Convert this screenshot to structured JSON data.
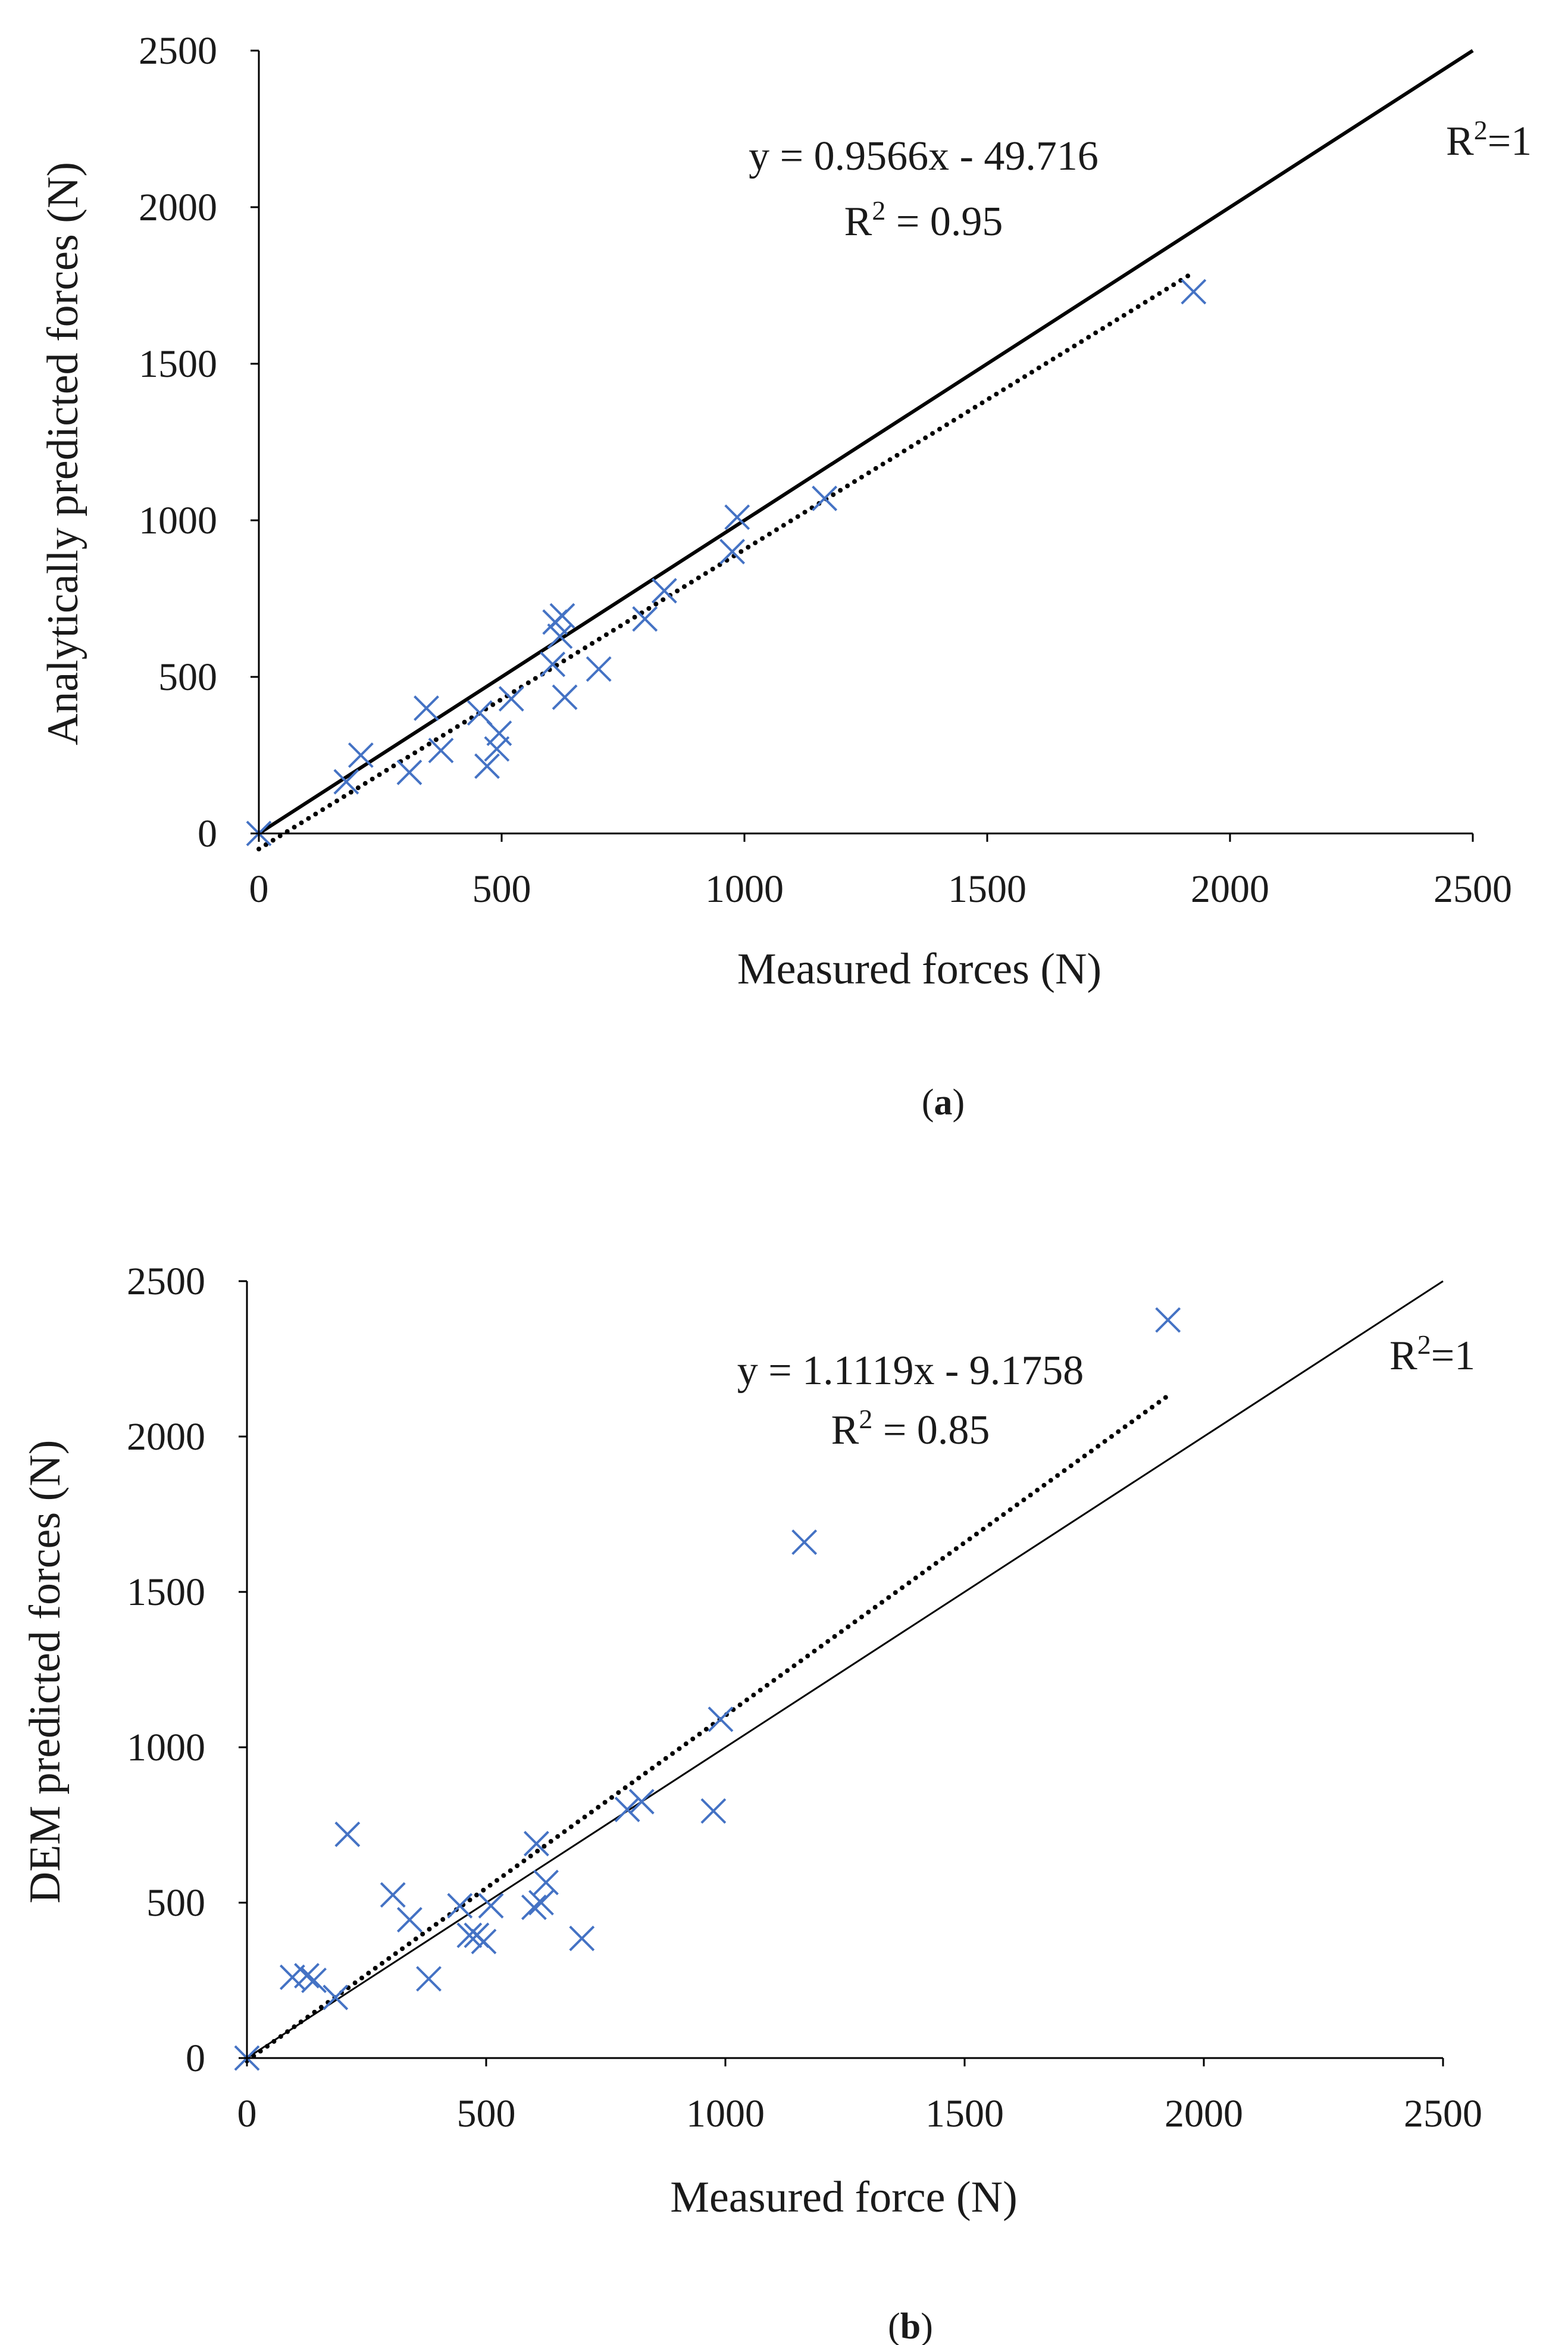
{
  "colors": {
    "marker": "#4472c4",
    "axis": "#000000",
    "text": "#1a1a1a"
  },
  "chart_data": [
    {
      "id": "a",
      "type": "scatter",
      "caption": {
        "open": "(",
        "letter": "a",
        "close": ")"
      },
      "xlabel": "Measured forces (N)",
      "ylabel": "Analytically predicted forces (N)",
      "xlim": [
        0,
        2500
      ],
      "ylim": [
        0,
        2500
      ],
      "xticks": [
        0,
        500,
        1000,
        1500,
        2000,
        2500
      ],
      "yticks": [
        0,
        500,
        1000,
        1500,
        2000,
        2500
      ],
      "grid": false,
      "legend": "none",
      "marker": "cross",
      "series": [
        {
          "name": "Analytical prediction",
          "x": [
            0,
            180,
            210,
            310,
            345,
            375,
            455,
            470,
            490,
            495,
            520,
            605,
            610,
            620,
            625,
            630,
            700,
            795,
            835,
            975,
            985,
            1165,
            1925
          ],
          "y": [
            0,
            165,
            250,
            195,
            400,
            265,
            385,
            215,
            270,
            320,
            430,
            540,
            675,
            630,
            695,
            435,
            525,
            685,
            775,
            900,
            1010,
            1070,
            1730
          ]
        }
      ],
      "lines": [
        {
          "name": "identity",
          "style": "solid",
          "x": [
            0,
            2500
          ],
          "y": [
            0,
            2500
          ],
          "label": "R²=1",
          "label_base": "R",
          "label_sup": "2",
          "label_tail": "=1"
        },
        {
          "name": "trend",
          "style": "dotted",
          "x": [
            0,
            1925
          ],
          "y": [
            -49.716,
            1791.7
          ],
          "equation": "y = 0.9566x - 49.716",
          "r2": "R² = 0.95",
          "r2_base": "R",
          "r2_sup": "2",
          "r2_tail": " = 0.95"
        }
      ]
    },
    {
      "id": "b",
      "type": "scatter",
      "caption": {
        "open": "(",
        "letter": "b",
        "close": ")"
      },
      "xlabel": "Measured force (N)",
      "ylabel": "DEM predicted forces (N)",
      "xlim": [
        0,
        2500
      ],
      "ylim": [
        0,
        2500
      ],
      "xticks": [
        0,
        500,
        1000,
        1500,
        2000,
        2500
      ],
      "yticks": [
        0,
        500,
        1000,
        1500,
        2000,
        2500
      ],
      "grid": false,
      "legend": "none",
      "marker": "cross",
      "series": [
        {
          "name": "DEM prediction",
          "x": [
            0,
            95,
            125,
            140,
            185,
            210,
            305,
            340,
            380,
            445,
            465,
            480,
            495,
            510,
            600,
            605,
            615,
            625,
            700,
            795,
            825,
            975,
            990,
            1165,
            1925
          ],
          "y": [
            0,
            260,
            265,
            250,
            195,
            720,
            525,
            445,
            255,
            490,
            395,
            395,
            375,
            490,
            485,
            690,
            500,
            565,
            385,
            800,
            825,
            795,
            1090,
            1660,
            2375
          ]
        }
      ],
      "lines": [
        {
          "name": "identity",
          "style": "solid",
          "x": [
            0,
            2500
          ],
          "y": [
            0,
            2500
          ],
          "label": "R²=1",
          "label_base": "R",
          "label_sup": "2",
          "label_tail": "=1"
        },
        {
          "name": "trend",
          "style": "dotted",
          "x": [
            0,
            1925
          ],
          "y": [
            -9.1758,
            2131.2
          ],
          "equation": "y = 1.1119x - 9.1758",
          "r2": "R² = 0.85",
          "r2_base": "R",
          "r2_sup": "2",
          "r2_tail": " = 0.85"
        }
      ]
    }
  ]
}
